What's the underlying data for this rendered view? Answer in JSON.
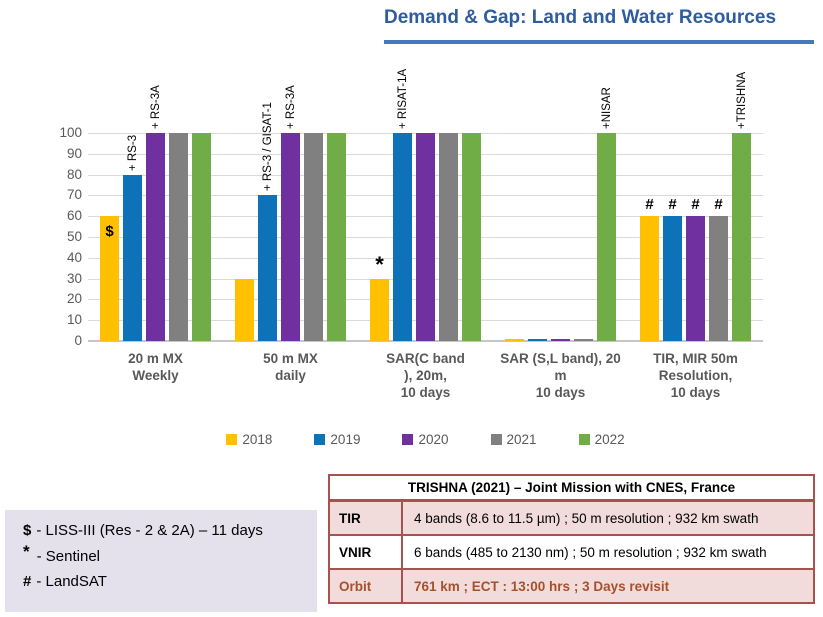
{
  "chart_data": {
    "type": "bar",
    "title": "Demand & Gap: Land and Water Resources",
    "xlabel": "",
    "ylabel": "",
    "ylim": [
      0,
      100
    ],
    "ytick_step": 10,
    "grid": true,
    "legend_position": "bottom",
    "categories": [
      {
        "lines": [
          "20 m  MX",
          "Weekly"
        ]
      },
      {
        "lines": [
          "50 m MX",
          "daily"
        ]
      },
      {
        "lines": [
          "SAR(C band",
          "), 20m,",
          "10 days"
        ]
      },
      {
        "lines": [
          "SAR (S,L band), 20",
          "m",
          "10 days"
        ]
      },
      {
        "lines": [
          "TIR, MIR  50m",
          "Resolution,",
          "10 days"
        ]
      }
    ],
    "series": [
      {
        "name": "2018",
        "color": "#FFC000",
        "values": [
          60,
          30,
          30,
          1,
          60
        ]
      },
      {
        "name": "2019",
        "color": "#0E72B8",
        "values": [
          80,
          70,
          100,
          1,
          60
        ]
      },
      {
        "name": "2020",
        "color": "#7030A0",
        "values": [
          100,
          100,
          100,
          1,
          60
        ]
      },
      {
        "name": "2021",
        "color": "#808080",
        "values": [
          100,
          100,
          100,
          1,
          60
        ]
      },
      {
        "name": "2022",
        "color": "#70AD47",
        "values": [
          100,
          100,
          100,
          100,
          100
        ]
      }
    ],
    "rotated_labels": [
      {
        "group": 0,
        "series": 1,
        "text": "+ RS-3"
      },
      {
        "group": 0,
        "series": 2,
        "text": "+ RS-3A"
      },
      {
        "group": 1,
        "series": 1,
        "text": "+ RS-3 / GISAT-1"
      },
      {
        "group": 1,
        "series": 2,
        "text": "+ RS-3A"
      },
      {
        "group": 2,
        "series": 1,
        "text": "+ RISAT-1A"
      },
      {
        "group": 3,
        "series": 4,
        "text": "+NISAR"
      },
      {
        "group": 4,
        "series": 4,
        "text": "+TRISHNA"
      }
    ],
    "bar_symbols": [
      {
        "group": 0,
        "series": 0,
        "text": "$",
        "placement": "inside"
      },
      {
        "group": 2,
        "series": 0,
        "text": "*",
        "placement": "above-star"
      },
      {
        "group": 4,
        "series": 0,
        "text": "#",
        "placement": "above"
      },
      {
        "group": 4,
        "series": 1,
        "text": "#",
        "placement": "above"
      },
      {
        "group": 4,
        "series": 2,
        "text": "#",
        "placement": "above"
      },
      {
        "group": 4,
        "series": 3,
        "text": "#",
        "placement": "above"
      }
    ]
  },
  "notes": {
    "lines": [
      {
        "symbol": "$",
        "text": "- LISS-III (Res - 2 & 2A) – 11 days"
      },
      {
        "symbol": "*",
        "text": "-  Sentinel"
      },
      {
        "symbol": "#",
        "text": "- LandSAT"
      }
    ]
  },
  "trishna_table": {
    "title": "TRISHNA (2021) – Joint Mission with CNES, France",
    "rows": [
      {
        "label": "TIR",
        "value": "4 bands (8.6 to 11.5 µm)  ; 50 m  resolution ; 932 km swath"
      },
      {
        "label": "VNIR",
        "value": "6 bands (485 to 2130 nm) ; 50 m  resolution ; 932 km swath"
      },
      {
        "label": "Orbit",
        "value": "761 km ; ECT : 13:00 hrs ; 3 Days revisit"
      }
    ]
  }
}
